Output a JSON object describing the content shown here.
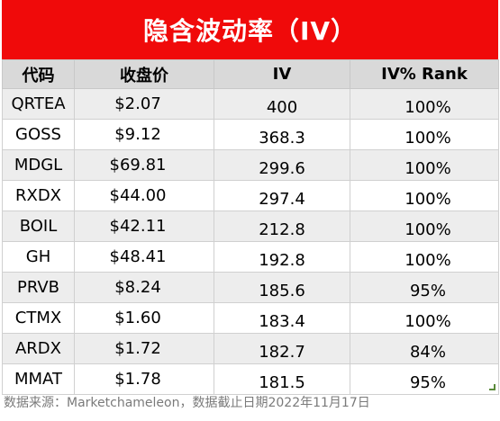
{
  "title": "隐含波动率（IV）",
  "columns": [
    "代码",
    "收盘价",
    "IV",
    "IV% Rank"
  ],
  "rows": [
    {
      "ticker": "QRTEA",
      "close": "$2.07",
      "iv": "400",
      "rank": "100%"
    },
    {
      "ticker": "GOSS",
      "close": "$9.12",
      "iv": "368.3",
      "rank": "100%"
    },
    {
      "ticker": "MDGL",
      "close": "$69.81",
      "iv": "299.6",
      "rank": "100%"
    },
    {
      "ticker": "RXDX",
      "close": "$44.00",
      "iv": "297.4",
      "rank": "100%"
    },
    {
      "ticker": "BOIL",
      "close": "$42.11",
      "iv": "212.8",
      "rank": "100%"
    },
    {
      "ticker": "GH",
      "close": "$48.41",
      "iv": "192.8",
      "rank": "100%"
    },
    {
      "ticker": "PRVB",
      "close": "$8.24",
      "iv": "185.6",
      "rank": "95%"
    },
    {
      "ticker": "CTMX",
      "close": "$1.60",
      "iv": "183.4",
      "rank": "100%"
    },
    {
      "ticker": "ARDX",
      "close": "$1.72",
      "iv": "182.7",
      "rank": "84%"
    },
    {
      "ticker": "MMAT",
      "close": "$1.78",
      "iv": "181.5",
      "rank": "95%"
    }
  ],
  "source_note": "数据来源：Marketchameleon，数据截止日期2022年11月17日",
  "colors": {
    "title_bg": "#f00a0a",
    "header_bg": "#d9d9d9",
    "stripe_bg": "#ededed"
  }
}
